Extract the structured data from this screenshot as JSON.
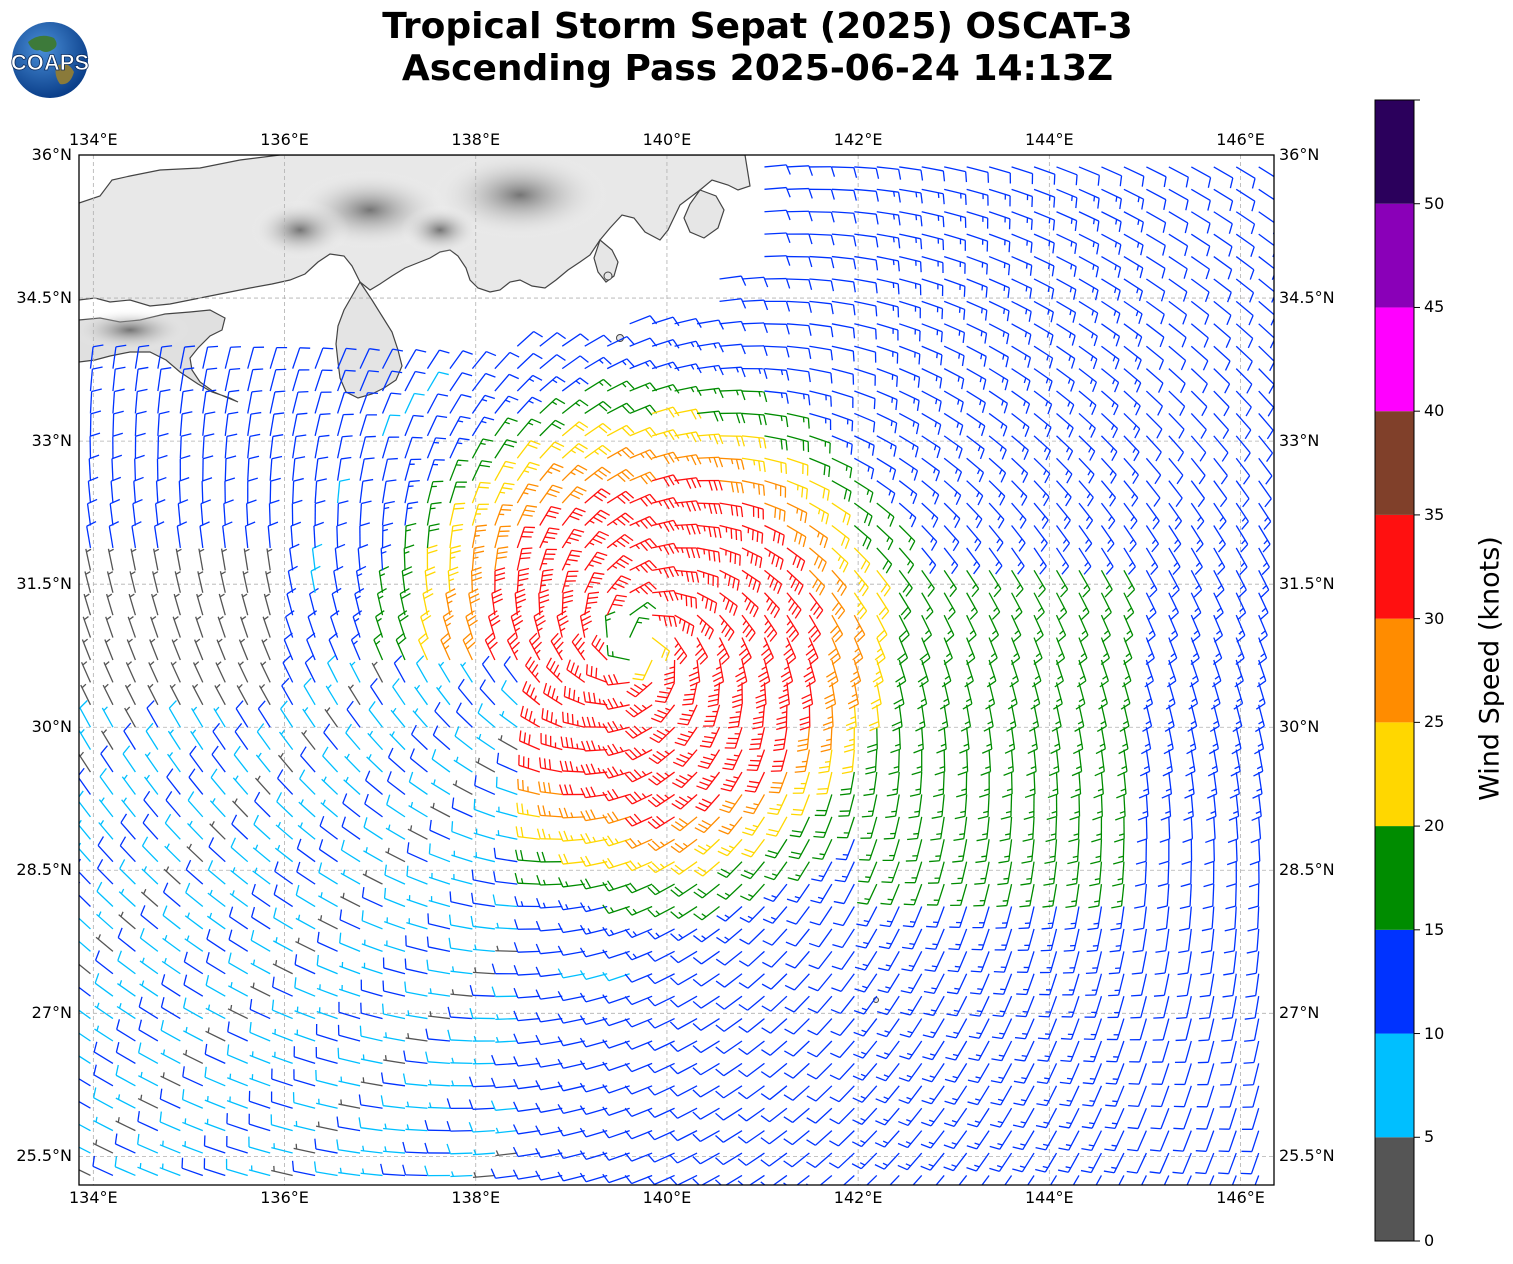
{
  "title": {
    "line1": "Tropical Storm Sepat (2025) OSCAT-3",
    "line2": "Ascending Pass 2025-06-24 14:13Z"
  },
  "logo": {
    "text": "COAPS"
  },
  "map": {
    "lon_ticks": [
      "134°E",
      "136°E",
      "138°E",
      "140°E",
      "142°E",
      "144°E",
      "146°E"
    ],
    "lat_ticks": [
      "36°N",
      "34.5°N",
      "33°N",
      "31.5°N",
      "30°N",
      "28.5°N",
      "27°N",
      "25.5°N"
    ],
    "lon_range": [
      133.85,
      146.35
    ],
    "lat_range": [
      25.2,
      36.0
    ],
    "grid": true,
    "land_outline_color": "#444444",
    "storm_center": {
      "lon": 139.7,
      "lat": 30.85
    }
  },
  "colorbar": {
    "label": "Wind Speed (knots)",
    "tick_labels": [
      "0",
      "5",
      "10",
      "15",
      "20",
      "25",
      "30",
      "35",
      "40",
      "45",
      "50"
    ],
    "bins": [
      {
        "min": 0,
        "max": 5,
        "color": "#555555"
      },
      {
        "min": 5,
        "max": 10,
        "color": "#00bfff"
      },
      {
        "min": 10,
        "max": 15,
        "color": "#0033ff"
      },
      {
        "min": 15,
        "max": 20,
        "color": "#008c00"
      },
      {
        "min": 20,
        "max": 25,
        "color": "#ffd700"
      },
      {
        "min": 25,
        "max": 30,
        "color": "#ff8c00"
      },
      {
        "min": 30,
        "max": 35,
        "color": "#ff1010"
      },
      {
        "min": 35,
        "max": 40,
        "color": "#80402a"
      },
      {
        "min": 40,
        "max": 45,
        "color": "#ff00ff"
      },
      {
        "min": 45,
        "max": 50,
        "color": "#8a00b8"
      },
      {
        "min": 50,
        "max": 55,
        "color": "#2b005c"
      }
    ]
  }
}
